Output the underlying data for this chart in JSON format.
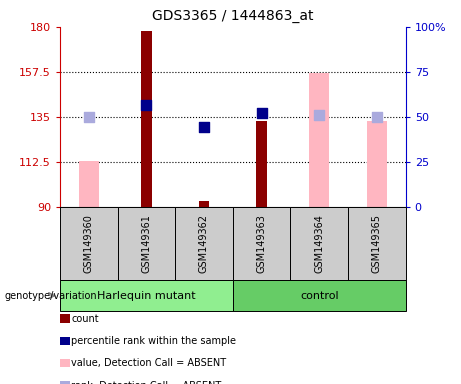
{
  "title": "GDS3365 / 1444863_at",
  "samples": [
    "GSM149360",
    "GSM149361",
    "GSM149362",
    "GSM149363",
    "GSM149364",
    "GSM149365"
  ],
  "ylim_left": [
    90,
    180
  ],
  "ylim_right": [
    0,
    100
  ],
  "yticks_left": [
    90,
    112.5,
    135,
    157.5,
    180
  ],
  "yticks_right": [
    0,
    25,
    50,
    75,
    100
  ],
  "red_bars": {
    "GSM149361": 178,
    "GSM149362": 93,
    "GSM149363": 133
  },
  "pink_bars": {
    "GSM149360": 113,
    "GSM149364": 157,
    "GSM149365": 133
  },
  "blue_dots": {
    "GSM149361": 141,
    "GSM149362": 130,
    "GSM149363": 137
  },
  "lavender_dots": {
    "GSM149360": 135,
    "GSM149364": 136,
    "GSM149365": 135
  },
  "bar_bottom": 90,
  "red_bar_color": "#8B0000",
  "pink_bar_color": "#FFB6C1",
  "blue_dot_color": "#00008B",
  "lavender_dot_color": "#AAAADD",
  "left_axis_color": "#CC0000",
  "right_axis_color": "#0000CC",
  "sample_box_color": "#CCCCCC",
  "harlequin_color": "#90EE90",
  "control_color": "#66CC66",
  "legend_items": [
    {
      "label": "count",
      "color": "#8B0000"
    },
    {
      "label": "percentile rank within the sample",
      "color": "#00008B"
    },
    {
      "label": "value, Detection Call = ABSENT",
      "color": "#FFB6C1"
    },
    {
      "label": "rank, Detection Call = ABSENT",
      "color": "#AAAADD"
    }
  ]
}
